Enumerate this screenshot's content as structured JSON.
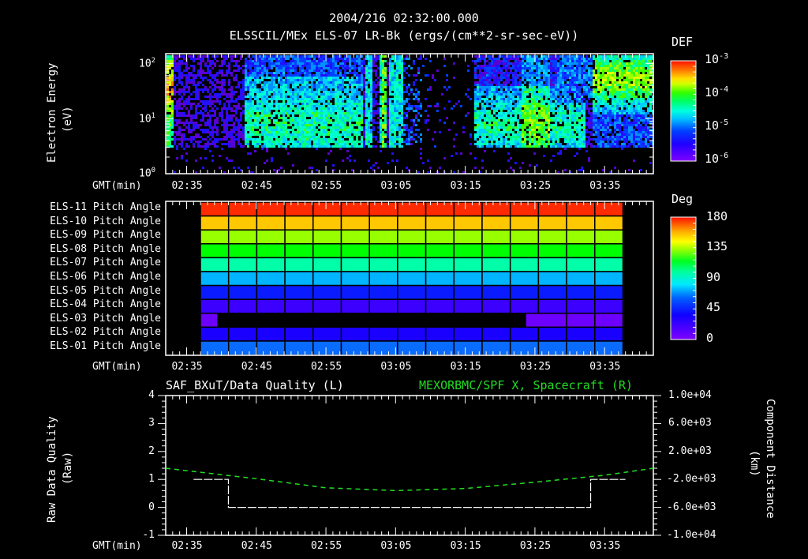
{
  "header": {
    "time_title": "2004/216 02:32:00.000",
    "subtitle": "ELSSCIL/MEx ELS-07 LR-Bk  (ergs/(cm**2-sr-sec-eV))"
  },
  "colors": {
    "background": "#000000",
    "axis": "#ffffff",
    "orbit_line": "#22dd22"
  },
  "chart_data": [
    {
      "type": "heatmap",
      "title": "ELSSCIL/MEx ELS-07 LR-Bk  (ergs/(cm**2-sr-sec-eV))",
      "xlabel": "GMT(min)",
      "ylabel": "Electron Energy",
      "ylabel_units": "(eV)",
      "y_scale": "log",
      "ylim": [
        1,
        150
      ],
      "y_ticks": [
        "10^0",
        "10^1",
        "10^2"
      ],
      "x_ticks": [
        "02:35",
        "02:45",
        "02:55",
        "03:05",
        "03:15",
        "03:25",
        "03:35"
      ],
      "xlim": [
        "02:32",
        "03:42"
      ],
      "colorbar": {
        "label": "DEF",
        "scale": "log",
        "range": [
          1e-06,
          0.001
        ],
        "ticks": [
          "10^-3",
          "10^-4",
          "10^-5",
          "10^-6"
        ]
      },
      "features": [
        {
          "time_range": [
            "02:32",
            "02:43"
          ],
          "energy_range_eV": [
            3,
            150
          ],
          "peak_energy_eV": 40,
          "level": "high (~3e-4)"
        },
        {
          "time_range": [
            "02:43",
            "03:00"
          ],
          "energy_range_eV": [
            3,
            100
          ],
          "level": "moderate (~3e-5)"
        },
        {
          "time_range": [
            "03:00",
            "03:06"
          ],
          "description": "intermittent vertical bursts with data gaps"
        },
        {
          "time_range": [
            "03:06",
            "03:12"
          ],
          "description": "data gap / very low flux"
        },
        {
          "time_range": [
            "03:12",
            "03:27"
          ],
          "energy_range_eV": [
            3,
            20
          ],
          "level": "moderate (~5e-5)"
        },
        {
          "time_range": [
            "03:32",
            "03:42"
          ],
          "energy_range_eV": [
            10,
            150
          ],
          "peak_energy_eV": 50,
          "level": "high (~2e-4)"
        }
      ]
    },
    {
      "type": "heatmap",
      "title": "Pitch Angle",
      "xlabel": "GMT(min)",
      "x_ticks": [
        "02:35",
        "02:45",
        "02:55",
        "03:05",
        "03:15",
        "03:25",
        "03:35"
      ],
      "rows": [
        "ELS-11 Pitch Angle",
        "ELS-10 Pitch Angle",
        "ELS-09 Pitch Angle",
        "ELS-08 Pitch Angle",
        "ELS-07 Pitch Angle",
        "ELS-06 Pitch Angle",
        "ELS-05 Pitch Angle",
        "ELS-04 Pitch Angle",
        "ELS-03 Pitch Angle",
        "ELS-02 Pitch Angle",
        "ELS-01 Pitch Angle"
      ],
      "row_values_deg": [
        170,
        150,
        125,
        105,
        85,
        60,
        35,
        20,
        10,
        25,
        55
      ],
      "data_time_range": [
        "02:37",
        "03:38"
      ],
      "columns": 15,
      "gaps": [
        {
          "row": "ELS-03 Pitch Angle",
          "time_range": [
            "02:39",
            "03:26"
          ]
        }
      ],
      "colorbar": {
        "label": "Deg",
        "range": [
          0,
          180
        ],
        "ticks": [
          "180",
          "135",
          "90",
          "45",
          "0"
        ]
      }
    },
    {
      "type": "line",
      "title_left": "SAF_BXuT/Data Quality (L)",
      "title_right": "MEXORBMC/SPF X, Spacecraft (R)",
      "xlabel": "GMT(min)",
      "x_ticks": [
        "02:35",
        "02:45",
        "02:55",
        "03:05",
        "03:15",
        "03:25",
        "03:35"
      ],
      "ylabel_left": "Raw Data Quality",
      "ylabel_left_units": "(Raw)",
      "ylim_left": [
        -1,
        4
      ],
      "y_ticks_left": [
        "4",
        "3",
        "2",
        "1",
        "0",
        "-1"
      ],
      "ylabel_right": "Component Distance",
      "ylabel_right_units": "(km)",
      "ylim_right": [
        -10000,
        10000
      ],
      "y_ticks_right": [
        "1.0e+04",
        "6.0e+03",
        "2.0e+03",
        "-2.0e+03",
        "-6.0e+03",
        "-1.0e+04"
      ],
      "series": [
        {
          "name": "Data Quality",
          "axis": "left",
          "color": "#ffffff",
          "style": "dashed",
          "x": [
            "02:36",
            "02:41",
            "02:41",
            "03:33",
            "03:33",
            "03:38"
          ],
          "y": [
            1,
            1,
            0,
            0,
            1,
            1
          ]
        },
        {
          "name": "SPF X, Spacecraft",
          "axis": "right",
          "color": "#22dd22",
          "style": "dashed",
          "x": [
            "02:32",
            "02:45",
            "02:55",
            "03:05",
            "03:15",
            "03:25",
            "03:35",
            "03:42"
          ],
          "y": [
            -400,
            -1900,
            -3200,
            -3600,
            -3300,
            -2400,
            -1400,
            -400
          ]
        }
      ]
    }
  ],
  "panel1": {
    "ylabel": "Electron Energy",
    "ylabel_units": "(eV)",
    "y_ticks": [
      {
        "base": "10",
        "exp": "2"
      },
      {
        "base": "10",
        "exp": "1"
      },
      {
        "base": "10",
        "exp": "0"
      }
    ],
    "xlabel": "GMT(min)",
    "x_ticks": [
      "02:35",
      "02:45",
      "02:55",
      "03:05",
      "03:15",
      "03:25",
      "03:35"
    ],
    "colorbar_label": "DEF",
    "colorbar_ticks": [
      {
        "base": "10",
        "exp": "-3"
      },
      {
        "base": "10",
        "exp": "-4"
      },
      {
        "base": "10",
        "exp": "-5"
      },
      {
        "base": "10",
        "exp": "-6"
      }
    ]
  },
  "panel2": {
    "rows": [
      "ELS-11 Pitch Angle",
      "ELS-10 Pitch Angle",
      "ELS-09 Pitch Angle",
      "ELS-08 Pitch Angle",
      "ELS-07 Pitch Angle",
      "ELS-06 Pitch Angle",
      "ELS-05 Pitch Angle",
      "ELS-04 Pitch Angle",
      "ELS-03 Pitch Angle",
      "ELS-02 Pitch Angle",
      "ELS-01 Pitch Angle"
    ],
    "xlabel": "GMT(min)",
    "x_ticks": [
      "02:35",
      "02:45",
      "02:55",
      "03:05",
      "03:15",
      "03:25",
      "03:35"
    ],
    "colorbar_label": "Deg",
    "colorbar_ticks": [
      "180",
      "135",
      "90",
      "45",
      "0"
    ]
  },
  "panel3": {
    "title_left": "SAF_BXuT/Data Quality (L)",
    "title_right": "MEXORBMC/SPF X, Spacecraft (R)",
    "ylabel_left": "Raw Data Quality",
    "ylabel_left_units": "(Raw)",
    "ylabel_right": "Component Distance",
    "ylabel_right_units": "(km)",
    "y_ticks_left": [
      "4",
      "3",
      "2",
      "1",
      "0",
      "-1"
    ],
    "y_ticks_right": [
      "1.0e+04",
      "6.0e+03",
      "2.0e+03",
      "-2.0e+03",
      "-6.0e+03",
      "-1.0e+04"
    ],
    "xlabel": "GMT(min)",
    "x_ticks": [
      "02:35",
      "02:45",
      "02:55",
      "03:05",
      "03:15",
      "03:25",
      "03:35"
    ]
  }
}
